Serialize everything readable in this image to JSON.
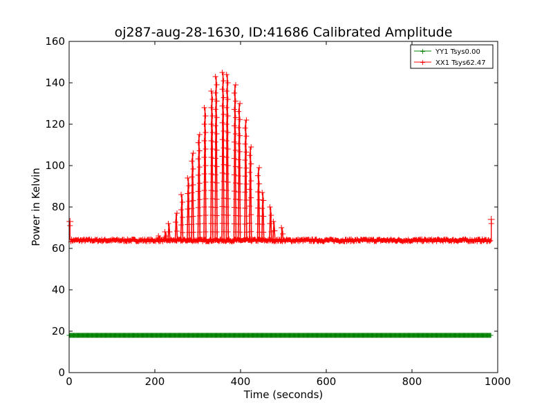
{
  "chart_data": {
    "type": "line",
    "title": "oj287-aug-28-1630, ID:41686 Calibrated Amplitude",
    "xlabel": "Time (seconds)",
    "ylabel": "Power in Kelvin",
    "xlim": [
      0,
      1000
    ],
    "ylim": [
      0,
      160
    ],
    "xticks": [
      "0",
      "200",
      "400",
      "600",
      "800",
      "1000"
    ],
    "yticks": [
      "0",
      "20",
      "40",
      "60",
      "80",
      "100",
      "120",
      "140",
      "160"
    ],
    "grid": false,
    "legend_position": "top-right",
    "series": [
      {
        "name": "YY1 Tsys0.00",
        "color": "#008000",
        "marker": "plus",
        "baseline": 18,
        "x_range": [
          0,
          985
        ],
        "y": 18
      },
      {
        "name": "XX1 Tsys62.47",
        "color": "#ff0000",
        "marker": "plus",
        "baseline": 64,
        "x_range": [
          0,
          985
        ],
        "edge_points": [
          {
            "x": 2,
            "y": 73
          },
          {
            "x": 985,
            "y": 74
          }
        ],
        "spikes": [
          {
            "x": 210,
            "y": 66
          },
          {
            "x": 225,
            "y": 68
          },
          {
            "x": 233,
            "y": 72
          },
          {
            "x": 250,
            "y": 77
          },
          {
            "x": 263,
            "y": 86
          },
          {
            "x": 278,
            "y": 94
          },
          {
            "x": 288,
            "y": 106
          },
          {
            "x": 303,
            "y": 115
          },
          {
            "x": 317,
            "y": 128
          },
          {
            "x": 333,
            "y": 136
          },
          {
            "x": 343,
            "y": 143
          },
          {
            "x": 359,
            "y": 145
          },
          {
            "x": 369,
            "y": 144
          },
          {
            "x": 387,
            "y": 139
          },
          {
            "x": 397,
            "y": 130
          },
          {
            "x": 412,
            "y": 122
          },
          {
            "x": 423,
            "y": 109
          },
          {
            "x": 442,
            "y": 99
          },
          {
            "x": 452,
            "y": 87
          },
          {
            "x": 470,
            "y": 80
          },
          {
            "x": 478,
            "y": 73
          },
          {
            "x": 497,
            "y": 70
          }
        ]
      }
    ]
  }
}
